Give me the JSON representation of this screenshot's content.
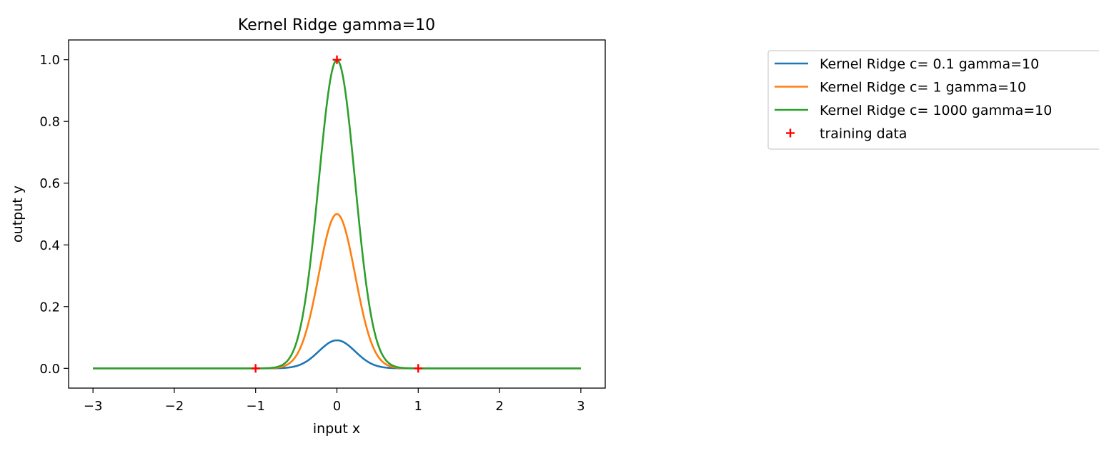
{
  "chart_data": {
    "type": "line",
    "title": "Kernel Ridge gamma=10",
    "xlabel": "input x",
    "ylabel": "output y",
    "xlim": [
      -3.3,
      3.3
    ],
    "ylim": [
      -0.064,
      1.064
    ],
    "xticks": [
      -3,
      -2,
      -1,
      0,
      1,
      2,
      3
    ],
    "xtick_labels": [
      "−3",
      "−2",
      "−1",
      "0",
      "1",
      "2",
      "3"
    ],
    "yticks": [
      0.0,
      0.2,
      0.4,
      0.6,
      0.8,
      1.0
    ],
    "ytick_labels": [
      "0.0",
      "0.2",
      "0.4",
      "0.6",
      "0.8",
      "1.0"
    ],
    "x_range": [
      -3,
      3
    ],
    "grid": false,
    "legend_position": "outside-right-top",
    "series": [
      {
        "name": "Kernel Ridge c= 0.1 gamma=10",
        "color": "#1f77b4",
        "peak": 0.0909,
        "width": 10
      },
      {
        "name": "Kernel Ridge c= 1 gamma=10",
        "color": "#ff7f0e",
        "peak": 0.5,
        "width": 10
      },
      {
        "name": "Kernel Ridge c= 1000 gamma=10",
        "color": "#2ca02c",
        "peak": 0.999,
        "width": 10
      }
    ],
    "training_data": {
      "name": "training data",
      "color": "#ff0000",
      "marker": "+",
      "x": [
        -1,
        0,
        1
      ],
      "y": [
        0,
        1,
        0
      ]
    }
  }
}
